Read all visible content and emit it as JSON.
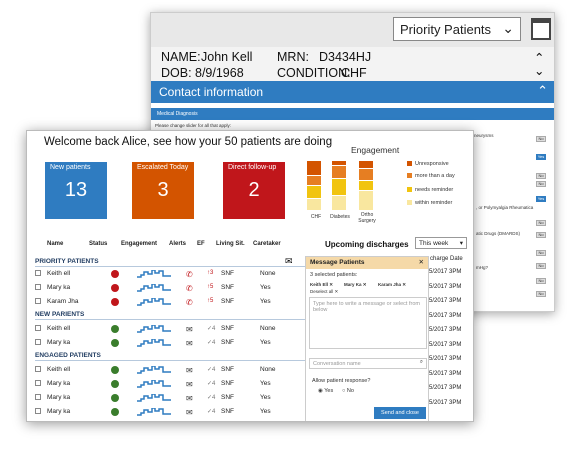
{
  "back": {
    "priority_select": "Priority Patients",
    "name_label": "NAME:",
    "name": "John Kell",
    "mrn_label": "MRN:",
    "mrn": "D3434HJ",
    "dob_label": "DOB:",
    "dob": "8/9/1968",
    "condition_label": "CONDITION:",
    "condition": "CHF",
    "contact_title": "Contact information",
    "medical_title": "Medical Diagnosis",
    "slider_text": "Please change slider for all that apply:",
    "aneurysms": "Aneurysms",
    "yes": "Yes",
    "no": "No",
    "polymyalgia": ", or Polymyalgia Rheumatica",
    "dmards": "atic Drugs (DMARDS)",
    "hg": "mHg?"
  },
  "front": {
    "welcome": "Welcome back Alice, see how your 50 patients are doing",
    "tiles": [
      {
        "label": "New patients",
        "value": "13",
        "color": "#2f7cc1"
      },
      {
        "label": "Escalated Today",
        "value": "3",
        "color": "#d35400"
      },
      {
        "label": "Direct follow-up",
        "value": "2",
        "color": "#c0161b"
      }
    ],
    "engagement_title": "Engagement",
    "legend": [
      "Unresponsive",
      "more than a day",
      "needs reminder",
      "within reminder"
    ],
    "columns": [
      "Name",
      "Status",
      "Engagement",
      "Alerts",
      "EF",
      "Living Sit.",
      "Caretaker"
    ],
    "sections": {
      "priority": "PRIORITY PATIENTS",
      "new": "NEW PARIENTS",
      "engaged": "ENGAGED PATIENTS"
    },
    "priority_rows": [
      {
        "name": "Keith ell",
        "ef": "↑3",
        "living": "SNF",
        "caretaker": "None"
      },
      {
        "name": "Mary ka",
        "ef": "↑5",
        "living": "SNF",
        "caretaker": "Yes"
      },
      {
        "name": "Karam Jha",
        "ef": "↑5",
        "living": "SNF",
        "caretaker": "Yes"
      }
    ],
    "new_rows": [
      {
        "name": "Keith ell",
        "ef": "✓4",
        "living": "SNF",
        "caretaker": "None"
      },
      {
        "name": "Mary ka",
        "ef": "✓4",
        "living": "SNF",
        "caretaker": "Yes"
      }
    ],
    "engaged_rows": [
      {
        "name": "Keith ell",
        "ef": "✓4",
        "living": "SNF",
        "caretaker": "None"
      },
      {
        "name": "Mary ka",
        "ef": "✓4",
        "living": "SNF",
        "caretaker": "Yes"
      },
      {
        "name": "Mary ka",
        "ef": "✓4",
        "living": "SNF",
        "caretaker": "Yes"
      },
      {
        "name": "Mary ka",
        "ef": "✓4",
        "living": "SNF",
        "caretaker": "Yes"
      }
    ],
    "upcoming": "Upcoming discharges",
    "this_week": "This week",
    "discharge_header": "charge Date",
    "dates": [
      "5/2017 3PM",
      "5/2017 3PM",
      "5/2017 3PM",
      "5/2017 3PM",
      "5/2017 3PM",
      "5/2017 3PM",
      "5/2017 3PM",
      "5/2017 3PM",
      "5/2017 3PM",
      "5/2017 3PM"
    ]
  },
  "message": {
    "title": "Message Patients",
    "selected": "3 selected patients:",
    "chips": [
      "Keith Ell",
      "Mary Ka",
      "Karam Jha"
    ],
    "deselect": "Deselect all",
    "placeholder": "Type here to write a message or select from below",
    "conversation": "Conversation name",
    "allow": "Allow patient response?",
    "yes": "Yes",
    "no": "No",
    "send": "Send and close"
  },
  "chart_data": {
    "type": "bar",
    "title": "Engagement",
    "categories": [
      "CHF",
      "Diabetes",
      "Ortho Surgery"
    ],
    "series": [
      {
        "name": "Unresponsive",
        "values": [
          30,
          10,
          15
        ],
        "color": "#d35400"
      },
      {
        "name": "more than a day",
        "values": [
          20,
          25,
          25
        ],
        "color": "#e67e22"
      },
      {
        "name": "needs reminder",
        "values": [
          25,
          35,
          20
        ],
        "color": "#f1c40f"
      },
      {
        "name": "within reminder",
        "values": [
          25,
          30,
          40
        ],
        "color": "#f9e79f"
      }
    ]
  }
}
